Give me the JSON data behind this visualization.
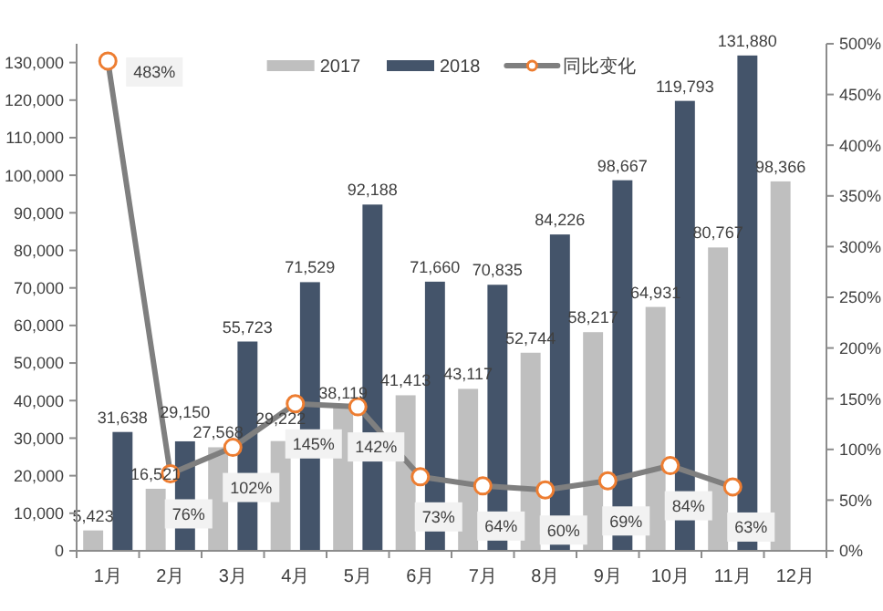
{
  "chart_data": {
    "type": "bar",
    "categories": [
      "1月",
      "2月",
      "3月",
      "4月",
      "5月",
      "6月",
      "7月",
      "8月",
      "9月",
      "10月",
      "11月",
      "12月"
    ],
    "series": [
      {
        "name": "2017",
        "color": "#bfbfbf",
        "values": [
          5423,
          16521,
          27568,
          29222,
          38119,
          41413,
          43117,
          52744,
          58217,
          64931,
          80767,
          98366
        ],
        "value_labels": [
          "5,423",
          "16,521",
          "27,568",
          "29,222",
          "38,119",
          "41,413",
          "43,117",
          "52,744",
          "58,217",
          "64,931",
          "80,767",
          "98,366"
        ]
      },
      {
        "name": "2018",
        "color": "#44546a",
        "values": [
          31638,
          29150,
          55723,
          71529,
          92188,
          71660,
          70835,
          84226,
          98667,
          119793,
          131880,
          null
        ],
        "value_labels": [
          "31,638",
          "29,150",
          "55,723",
          "71,529",
          "92,188",
          "71,660",
          "70,835",
          "84,226",
          "98,667",
          "119,793",
          "131,880",
          null
        ]
      },
      {
        "name": "同比变化",
        "type": "line",
        "axis": "y2",
        "color": "#7f7f7f",
        "values": [
          483,
          76,
          102,
          145,
          142,
          73,
          64,
          60,
          69,
          84,
          63,
          null
        ],
        "value_labels": [
          "483%",
          "76%",
          "102%",
          "145%",
          "142%",
          "73%",
          "64%",
          "60%",
          "69%",
          "84%",
          "63%",
          null
        ]
      }
    ],
    "ylim": [
      0,
      135000
    ],
    "yticks": [
      0,
      {
        "value": 10000,
        "label": "10,000"
      },
      {
        "value": 20000,
        "label": "20,000"
      },
      {
        "value": 30000,
        "label": "30,000"
      },
      {
        "value": 40000,
        "label": "40,000"
      },
      {
        "value": 50000,
        "label": "50,000"
      },
      {
        "value": 60000,
        "label": "60,000"
      },
      {
        "value": 70000,
        "label": "70,000"
      },
      {
        "value": 80000,
        "label": "80,000"
      },
      {
        "value": 90000,
        "label": "90,000"
      },
      {
        "value": 100000,
        "label": "100,000"
      },
      {
        "value": 110000,
        "label": "110,000"
      },
      {
        "value": 120000,
        "label": "120,000"
      },
      {
        "value": 130000,
        "label": "130,000"
      }
    ],
    "y2lim": [
      0,
      500
    ],
    "y2ticks": [
      {
        "value": 0,
        "label": "0%"
      },
      {
        "value": 50,
        "label": "50%"
      },
      {
        "value": 100,
        "label": "100%"
      },
      {
        "value": 150,
        "label": "150%"
      },
      {
        "value": 200,
        "label": "200%"
      },
      {
        "value": 250,
        "label": "250%"
      },
      {
        "value": 300,
        "label": "300%"
      },
      {
        "value": 350,
        "label": "350%"
      },
      {
        "value": 400,
        "label": "400%"
      },
      {
        "value": 450,
        "label": "450%"
      },
      {
        "value": 500,
        "label": "500%"
      }
    ],
    "legend": "top",
    "marker": "circle",
    "line_style": "solid"
  }
}
